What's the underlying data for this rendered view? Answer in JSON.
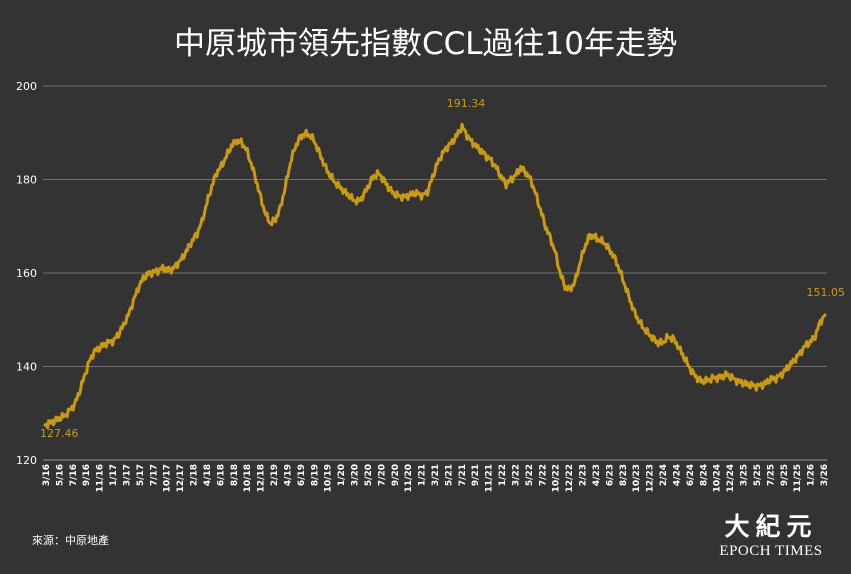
{
  "chart_data": {
    "type": "line",
    "title": "中原城市領先指數CCL過往10年走勢",
    "xlabel": "",
    "ylabel": "",
    "ylim": [
      120,
      200
    ],
    "yticks": [
      120,
      140,
      160,
      180,
      200
    ],
    "grid": true,
    "legend": "none",
    "line_color": "#c99a10",
    "tick_labels": [
      "3/16",
      "5/16",
      "7/16",
      "9/16",
      "11/16",
      "1/17",
      "3/17",
      "5/17",
      "7/17",
      "10/17",
      "12/17",
      "2/18",
      "4/18",
      "6/18",
      "8/18",
      "10/18",
      "12/18",
      "2/19",
      "4/19",
      "6/19",
      "8/19",
      "10/19",
      "1/20",
      "3/20",
      "5/20",
      "7/20",
      "9/20",
      "11/20",
      "1/21",
      "3/21",
      "5/21",
      "7/21",
      "9/21",
      "11/21",
      "1/22",
      "3/22",
      "5/22",
      "7/22",
      "10/22",
      "12/22",
      "2/23",
      "4/23",
      "6/23",
      "8/23",
      "10/23",
      "12/23",
      "2/24",
      "4/24",
      "6/24",
      "8/24",
      "10/24",
      "12/24",
      "3/25",
      "5/25",
      "7/25",
      "9/25",
      "11/25",
      "1/26",
      "3/26"
    ],
    "series": [
      {
        "values": [
          127.46,
          128.0,
          128.4,
          128.9,
          129.5,
          130.6,
          131.8,
          134.5,
          137.8,
          141.0,
          143.2,
          143.9,
          144.6,
          145.2,
          145.5,
          147.0,
          148.8,
          151.0,
          154.0,
          156.8,
          158.8,
          159.8,
          160.2,
          160.5,
          161.0,
          160.6,
          160.8,
          162.0,
          163.2,
          165.0,
          166.8,
          168.5,
          171.0,
          175.0,
          178.5,
          181.5,
          183.0,
          185.0,
          187.2,
          188.3,
          188.0,
          186.5,
          183.5,
          180.0,
          176.0,
          172.5,
          170.5,
          171.5,
          174.0,
          178.5,
          183.5,
          187.0,
          189.0,
          189.8,
          189.5,
          188.0,
          185.5,
          183.0,
          181.0,
          179.5,
          178.5,
          177.5,
          176.5,
          175.5,
          175.3,
          176.8,
          178.8,
          180.7,
          181.3,
          180.0,
          178.3,
          177.0,
          176.5,
          176.3,
          176.5,
          177.0,
          177.0,
          176.5,
          177.5,
          180.5,
          183.5,
          185.5,
          187.0,
          188.0,
          189.5,
          191.34,
          189.5,
          188.0,
          187.0,
          186.0,
          185.0,
          184.0,
          182.5,
          180.5,
          179.0,
          180.0,
          181.0,
          182.5,
          181.5,
          180.0,
          177.0,
          173.5,
          170.0,
          167.5,
          164.5,
          160.0,
          157.0,
          156.5,
          158.0,
          162.0,
          165.5,
          168.0,
          167.8,
          167.0,
          166.5,
          165.0,
          163.5,
          161.0,
          158.0,
          155.0,
          152.0,
          149.8,
          148.2,
          147.0,
          146.0,
          145.0,
          145.2,
          146.3,
          146.0,
          144.5,
          142.5,
          140.5,
          138.7,
          137.5,
          136.8,
          137.0,
          137.5,
          137.6,
          137.8,
          138.3,
          137.6,
          137.0,
          136.6,
          136.2,
          136.0,
          135.8,
          136.0,
          136.5,
          137.3,
          137.5,
          138.2,
          139.3,
          140.5,
          141.7,
          143.0,
          144.5,
          145.2,
          146.5,
          149.5,
          151.05
        ]
      }
    ],
    "annotations": [
      {
        "label": "127.46",
        "value": 127.46
      },
      {
        "label": "191.34",
        "value": 191.34
      },
      {
        "label": "151.05",
        "value": 151.05
      }
    ]
  },
  "source": "來源：中原地產",
  "logo": {
    "cjk": "大紀元",
    "en": "EPOCH TIMES"
  }
}
